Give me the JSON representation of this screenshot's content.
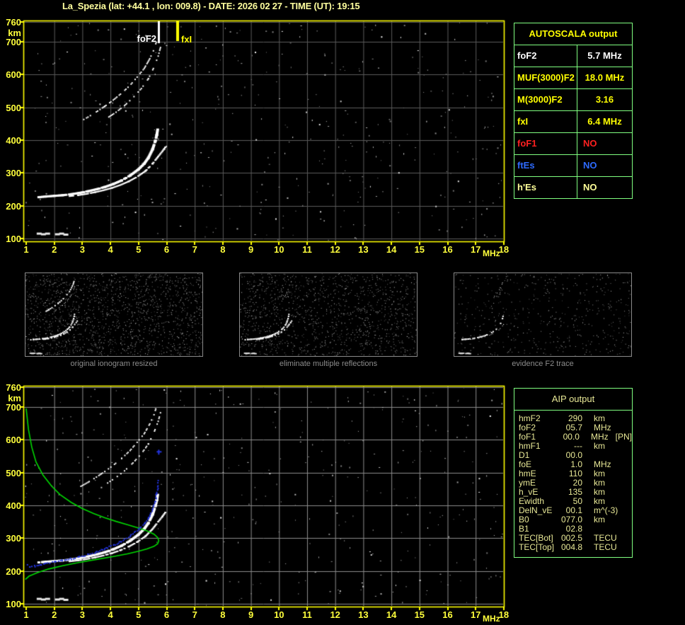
{
  "title": "La_Spezia (lat: +44.1 , lon: 009.8) - DATE: 2026 02 27 - TIME (UT): 19:15",
  "colors": {
    "title": "#FFFF9E",
    "axis_labels": "#FFFF3C",
    "plot_border": "#FFFF00",
    "grid_top": "#5A5A5A",
    "grid_bottom": "#8C8C8C",
    "table_border": "#80FF80",
    "profile_green": "#00D800",
    "restored_trace_blue": "#2233DD",
    "echo_white": "#FFFFFF",
    "caption_gray": "#8C8C8C",
    "aip_text": "#E8E896"
  },
  "autoscala": {
    "header": "AUTOSCALA output",
    "rows": [
      {
        "param": "foF2",
        "value": "5.7 MHz",
        "color": "#FFFFFF",
        "align": "center"
      },
      {
        "param": "MUF(3000)F2",
        "value": "18.0 MHz",
        "color": "#FFFF00",
        "align": "center"
      },
      {
        "param": "M(3000)F2",
        "value": "3.16",
        "color": "#FFFF00",
        "align": "center"
      },
      {
        "param": "fxI",
        "value": "6.4 MHz",
        "color": "#FFFF00",
        "align": "center"
      },
      {
        "param": "foF1",
        "value": "NO",
        "color": "#FF2020",
        "align": "left"
      },
      {
        "param": "ftEs",
        "value": "NO",
        "color": "#2E6BFF",
        "align": "left"
      },
      {
        "param": "h'Es",
        "value": "NO",
        "color": "#FFFF99",
        "align": "left"
      }
    ]
  },
  "aip": {
    "header": "AIP output",
    "rows": [
      {
        "param": "hmF2",
        "value": "290",
        "unit": "km",
        "extra": ""
      },
      {
        "param": "foF2",
        "value": "05.7",
        "unit": "MHz",
        "extra": ""
      },
      {
        "param": "foF1",
        "value": "00.0",
        "unit": "MHz",
        "extra": "[PN]"
      },
      {
        "param": "hmF1",
        "value": "---",
        "unit": "km",
        "extra": ""
      },
      {
        "param": "D1",
        "value": "00.0",
        "unit": "",
        "extra": ""
      },
      {
        "param": "foE",
        "value": "1.0",
        "unit": "MHz",
        "extra": ""
      },
      {
        "param": "hmE",
        "value": "110",
        "unit": "km",
        "extra": ""
      },
      {
        "param": "ymE",
        "value": "20",
        "unit": "km",
        "extra": ""
      },
      {
        "param": "h_vE",
        "value": "135",
        "unit": "km",
        "extra": ""
      },
      {
        "param": "Ewidth",
        "value": "50",
        "unit": "km",
        "extra": ""
      },
      {
        "param": "DelN_vE",
        "value": "00.1",
        "unit": "m^(-3)",
        "extra": ""
      },
      {
        "param": "B0",
        "value": "077.0",
        "unit": "km",
        "extra": ""
      },
      {
        "param": "B1",
        "value": "02.8",
        "unit": "",
        "extra": ""
      },
      {
        "param": "TEC[Bot]",
        "value": "002.5",
        "unit": "TECU",
        "extra": ""
      },
      {
        "param": "TEC[Top]",
        "value": "004.8",
        "unit": "TECU",
        "extra": ""
      }
    ]
  },
  "panels": [
    {
      "caption": "original ionogram resized"
    },
    {
      "caption": "eliminate multiple reflections"
    },
    {
      "caption": "evidence F2 trace"
    }
  ],
  "chart_data": [
    {
      "id": "ionogram_autoscaled",
      "type": "scatter",
      "title": "",
      "xlabel": "MHz",
      "ylabel": "km",
      "xlim": [
        1,
        18
      ],
      "ylim": [
        100,
        760
      ],
      "x_ticks": [
        1,
        2,
        3,
        4,
        5,
        6,
        7,
        8,
        9,
        10,
        11,
        12,
        13,
        14,
        15,
        16,
        17,
        18
      ],
      "y_ticks": [
        760,
        700,
        600,
        500,
        400,
        300,
        200,
        100
      ],
      "grid": true,
      "markers": [
        {
          "label": "foF2",
          "mhz": 5.7,
          "color": "#FFFFFF"
        },
        {
          "label": "fxI",
          "mhz": 6.4,
          "color": "#FFFF00"
        }
      ],
      "series": [
        {
          "name": "F2-trace-O",
          "color": "#FFFFFF",
          "points": [
            [
              1.45,
              226
            ],
            [
              1.7,
              228
            ],
            [
              2.0,
              230
            ],
            [
              2.3,
              232
            ],
            [
              2.6,
              235
            ],
            [
              2.9,
              239
            ],
            [
              3.2,
              244
            ],
            [
              3.5,
              250
            ],
            [
              3.8,
              257
            ],
            [
              4.1,
              266
            ],
            [
              4.4,
              277
            ],
            [
              4.7,
              292
            ],
            [
              5.0,
              311
            ],
            [
              5.2,
              328
            ],
            [
              5.35,
              346
            ],
            [
              5.5,
              372
            ],
            [
              5.6,
              398
            ],
            [
              5.65,
              416
            ],
            [
              5.68,
              432
            ]
          ]
        },
        {
          "name": "F2-trace-X",
          "color": "#FFFFFF",
          "points": [
            [
              2.55,
              229
            ],
            [
              2.85,
              232
            ],
            [
              3.15,
              236
            ],
            [
              3.45,
              241
            ],
            [
              3.75,
              247
            ],
            [
              4.05,
              254
            ],
            [
              4.35,
              263
            ],
            [
              4.65,
              274
            ],
            [
              4.95,
              288
            ],
            [
              5.25,
              306
            ],
            [
              5.5,
              328
            ],
            [
              5.7,
              350
            ],
            [
              5.85,
              366
            ],
            [
              5.95,
              378
            ]
          ]
        },
        {
          "name": "second-hop-O",
          "color": "#FFFFFF",
          "points": [
            [
              2.95,
              458
            ],
            [
              3.2,
              470
            ],
            [
              3.5,
              486
            ],
            [
              3.8,
              503
            ],
            [
              4.1,
              522
            ],
            [
              4.4,
              543
            ],
            [
              4.7,
              567
            ],
            [
              4.95,
              592
            ],
            [
              5.2,
              618
            ],
            [
              5.4,
              648
            ],
            [
              5.55,
              676
            ],
            [
              5.63,
              698
            ]
          ]
        },
        {
          "name": "second-hop-X",
          "color": "#FFFFFF",
          "points": [
            [
              3.9,
              468
            ],
            [
              4.2,
              485
            ],
            [
              4.5,
              505
            ],
            [
              4.8,
              529
            ],
            [
              5.1,
              557
            ],
            [
              5.35,
              587
            ],
            [
              5.55,
              622
            ],
            [
              5.7,
              656
            ],
            [
              5.78,
              682
            ]
          ]
        },
        {
          "name": "E-region-echo",
          "color": "#FFFFFF",
          "points": [
            [
              1.45,
              116
            ],
            [
              1.6,
              114
            ],
            [
              1.75,
              116
            ],
            [
              2.1,
              114
            ],
            [
              2.25,
              116
            ],
            [
              2.4,
              113
            ]
          ]
        }
      ]
    },
    {
      "id": "ionogram_profile",
      "type": "line",
      "xlabel": "MHz",
      "ylabel": "km",
      "xlim": [
        1,
        18
      ],
      "ylim": [
        100,
        760
      ],
      "x_ticks": [
        1,
        2,
        3,
        4,
        5,
        6,
        7,
        8,
        9,
        10,
        11,
        12,
        13,
        14,
        15,
        16,
        17,
        18
      ],
      "y_ticks": [
        760,
        700,
        600,
        500,
        400,
        300,
        200,
        100
      ],
      "grid": true,
      "echo_series_ref": "ionogram_autoscaled",
      "series": [
        {
          "name": "electron-density-profile",
          "color": "#00D800",
          "points": [
            [
              1.0,
              695
            ],
            [
              1.08,
              632
            ],
            [
              1.2,
              577
            ],
            [
              1.35,
              532
            ],
            [
              1.6,
              492
            ],
            [
              1.9,
              459
            ],
            [
              2.2,
              433
            ],
            [
              2.6,
              409
            ],
            [
              3.0,
              390
            ],
            [
              3.4,
              375
            ],
            [
              3.8,
              362
            ],
            [
              4.2,
              351
            ],
            [
              4.6,
              341
            ],
            [
              5.0,
              331
            ],
            [
              5.3,
              322
            ],
            [
              5.55,
              312
            ],
            [
              5.68,
              302
            ],
            [
              5.72,
              292
            ],
            [
              5.68,
              283
            ],
            [
              5.55,
              275
            ],
            [
              5.3,
              267
            ],
            [
              5.0,
              260
            ],
            [
              4.6,
              252
            ],
            [
              4.1,
              244
            ],
            [
              3.5,
              235
            ],
            [
              2.9,
              226
            ],
            [
              2.3,
              216
            ],
            [
              1.8,
              206
            ],
            [
              1.4,
              195
            ],
            [
              1.1,
              184
            ],
            [
              0.97,
              174
            ]
          ]
        },
        {
          "name": "restored-trace",
          "color": "#2233DD",
          "points": [
            [
              1.05,
              208
            ],
            [
              1.15,
              204
            ],
            [
              1.3,
              206
            ],
            [
              1.5,
              210
            ],
            [
              1.7,
              214
            ],
            [
              2.0,
              218
            ],
            [
              2.3,
              223
            ],
            [
              2.6,
              228
            ],
            [
              2.9,
              234
            ],
            [
              3.2,
              241
            ],
            [
              3.5,
              249
            ],
            [
              3.8,
              258
            ],
            [
              4.1,
              269
            ],
            [
              4.4,
              282
            ],
            [
              4.7,
              298
            ],
            [
              5.0,
              318
            ],
            [
              5.2,
              335
            ],
            [
              5.35,
              353
            ],
            [
              5.5,
              379
            ],
            [
              5.6,
              404
            ],
            [
              5.65,
              427
            ],
            [
              5.68,
              450
            ],
            [
              5.7,
              466
            ]
          ]
        },
        {
          "name": "restored-trace-stray",
          "color": "#2233DD",
          "points": [
            [
              5.72,
              563
            ]
          ]
        }
      ]
    }
  ]
}
